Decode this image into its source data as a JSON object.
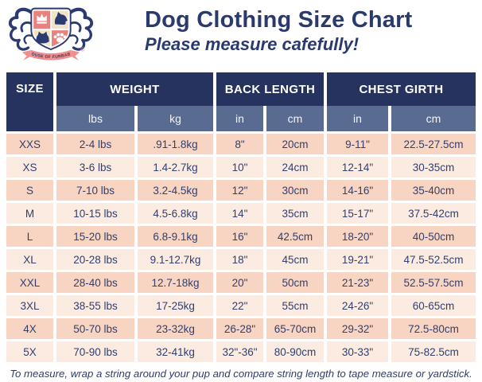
{
  "page": {
    "title": "Dog Clothing Size Chart",
    "subtitle": "Please measure cafefully!",
    "footer_note": "To measure, wrap a string around your pup and compare string length to tape measure or yardstick."
  },
  "logo": {
    "banner_text": "HOUSE OF FURBABY",
    "copyright": "©"
  },
  "colors": {
    "navy": "#27335f",
    "subheader_blue": "#5a6b92",
    "row_dark": "#f8d5c3",
    "row_light": "#fcebe0",
    "cell_text": "#31406f",
    "logo_salmon": "#e9827f",
    "logo_cream": "#f1e3c6",
    "ribbon_pink": "#f08e8c"
  },
  "table": {
    "header": {
      "size": "SIZE",
      "weight": "WEIGHT",
      "back_length": "BACK LENGTH",
      "chest_girth": "CHEST GIRTH",
      "units": [
        "lbs",
        "kg",
        "in",
        "cm",
        "in",
        "cm"
      ]
    },
    "rows": [
      {
        "size": "XXS",
        "weight_lbs": "2-4 lbs",
        "weight_kg": ".91-1.8kg",
        "back_in": "8\"",
        "back_cm": "20cm",
        "chest_in": "9-11\"",
        "chest_cm": "22.5-27.5cm"
      },
      {
        "size": "XS",
        "weight_lbs": "3-6 lbs",
        "weight_kg": "1.4-2.7kg",
        "back_in": "10\"",
        "back_cm": "24cm",
        "chest_in": "12-14\"",
        "chest_cm": "30-35cm"
      },
      {
        "size": "S",
        "weight_lbs": "7-10 lbs",
        "weight_kg": "3.2-4.5kg",
        "back_in": "12\"",
        "back_cm": "30cm",
        "chest_in": "14-16\"",
        "chest_cm": "35-40cm"
      },
      {
        "size": "M",
        "weight_lbs": "10-15 lbs",
        "weight_kg": "4.5-6.8kg",
        "back_in": "14\"",
        "back_cm": "35cm",
        "chest_in": "15-17\"",
        "chest_cm": "37.5-42cm"
      },
      {
        "size": "L",
        "weight_lbs": "15-20 lbs",
        "weight_kg": "6.8-9.1kg",
        "back_in": "16\"",
        "back_cm": "42.5cm",
        "chest_in": "18-20\"",
        "chest_cm": "40-50cm"
      },
      {
        "size": "XL",
        "weight_lbs": "20-28 lbs",
        "weight_kg": "9.1-12.7kg",
        "back_in": "18\"",
        "back_cm": "45cm",
        "chest_in": "19-21\"",
        "chest_cm": "47.5-52.5cm"
      },
      {
        "size": "XXL",
        "weight_lbs": "28-40 lbs",
        "weight_kg": "12.7-18kg",
        "back_in": "20\"",
        "back_cm": "50cm",
        "chest_in": "21-23\"",
        "chest_cm": "52.5-57.5cm"
      },
      {
        "size": "3XL",
        "weight_lbs": "38-55 lbs",
        "weight_kg": "17-25kg",
        "back_in": "22\"",
        "back_cm": "55cm",
        "chest_in": "24-26\"",
        "chest_cm": "60-65cm"
      },
      {
        "size": "4X",
        "weight_lbs": "50-70 lbs",
        "weight_kg": "23-32kg",
        "back_in": "26-28\"",
        "back_cm": "65-70cm",
        "chest_in": "29-32\"",
        "chest_cm": "72.5-80cm"
      },
      {
        "size": "5X",
        "weight_lbs": "70-90 lbs",
        "weight_kg": "32-41kg",
        "back_in": "32\"-36\"",
        "back_cm": "80-90cm",
        "chest_in": "30-33\"",
        "chest_cm": "75-82.5cm"
      }
    ]
  }
}
